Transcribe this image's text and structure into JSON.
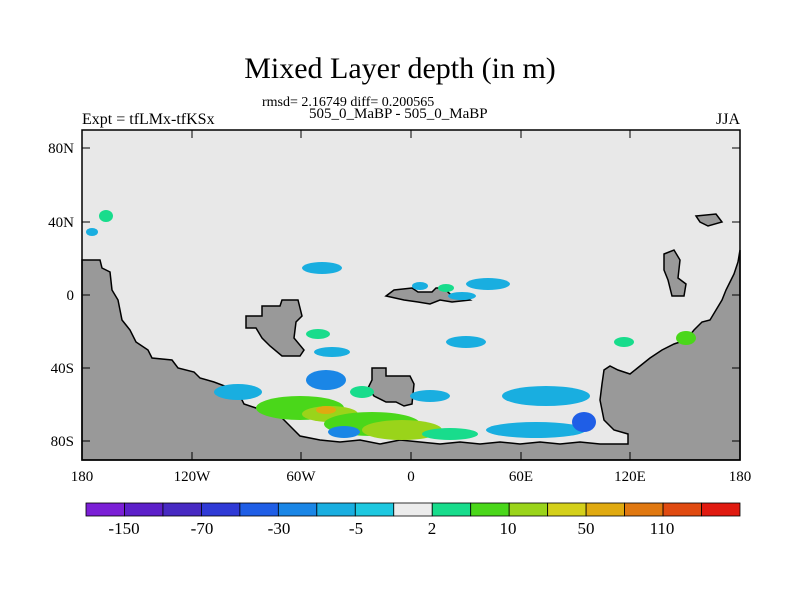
{
  "header": {
    "title": "Mixed Layer depth (in m)",
    "stats": "rmsd= 2.16749 diff= 0.200565",
    "experiment_left": "Expt = tfLMx-tfKSx",
    "experiment_center": "505_0_MaBP - 505_0_MaBP",
    "season_right": "JJA"
  },
  "chart_data": {
    "type": "heatmap",
    "title": "Mixed Layer depth (in m)",
    "subtitle": "505_0_MaBP - 505_0_MaBP",
    "xlabel": "",
    "ylabel": "",
    "xlim": [
      -180,
      180
    ],
    "ylim": [
      -90,
      90
    ],
    "x_ticks": [
      -180,
      -120,
      -60,
      0,
      60,
      120,
      180
    ],
    "x_tick_labels": [
      "180",
      "120W",
      "60W",
      "0",
      "60E",
      "120E",
      "180"
    ],
    "y_ticks": [
      80,
      40,
      0,
      -40,
      -80
    ],
    "y_tick_labels": [
      "80N",
      "40N",
      "0",
      "40S",
      "80S"
    ],
    "grid": false,
    "legend": "bottom",
    "background_value_color": "#e8e8e8",
    "land_color": "#999999",
    "colorbar": {
      "colors": [
        "#7b1fd6",
        "#5c1fc9",
        "#4729c2",
        "#2f3ad6",
        "#1f5ee6",
        "#1a86e6",
        "#19aee0",
        "#1ec8e0",
        "#ececec",
        "#18dc8c",
        "#4ad71a",
        "#9ad41a",
        "#d4d01a",
        "#e0aa10",
        "#e07810",
        "#e04a10",
        "#e01a10"
      ],
      "tick_labels": [
        "-150",
        "-70",
        "-30",
        "-5",
        "2",
        "10",
        "50",
        "110"
      ]
    }
  }
}
